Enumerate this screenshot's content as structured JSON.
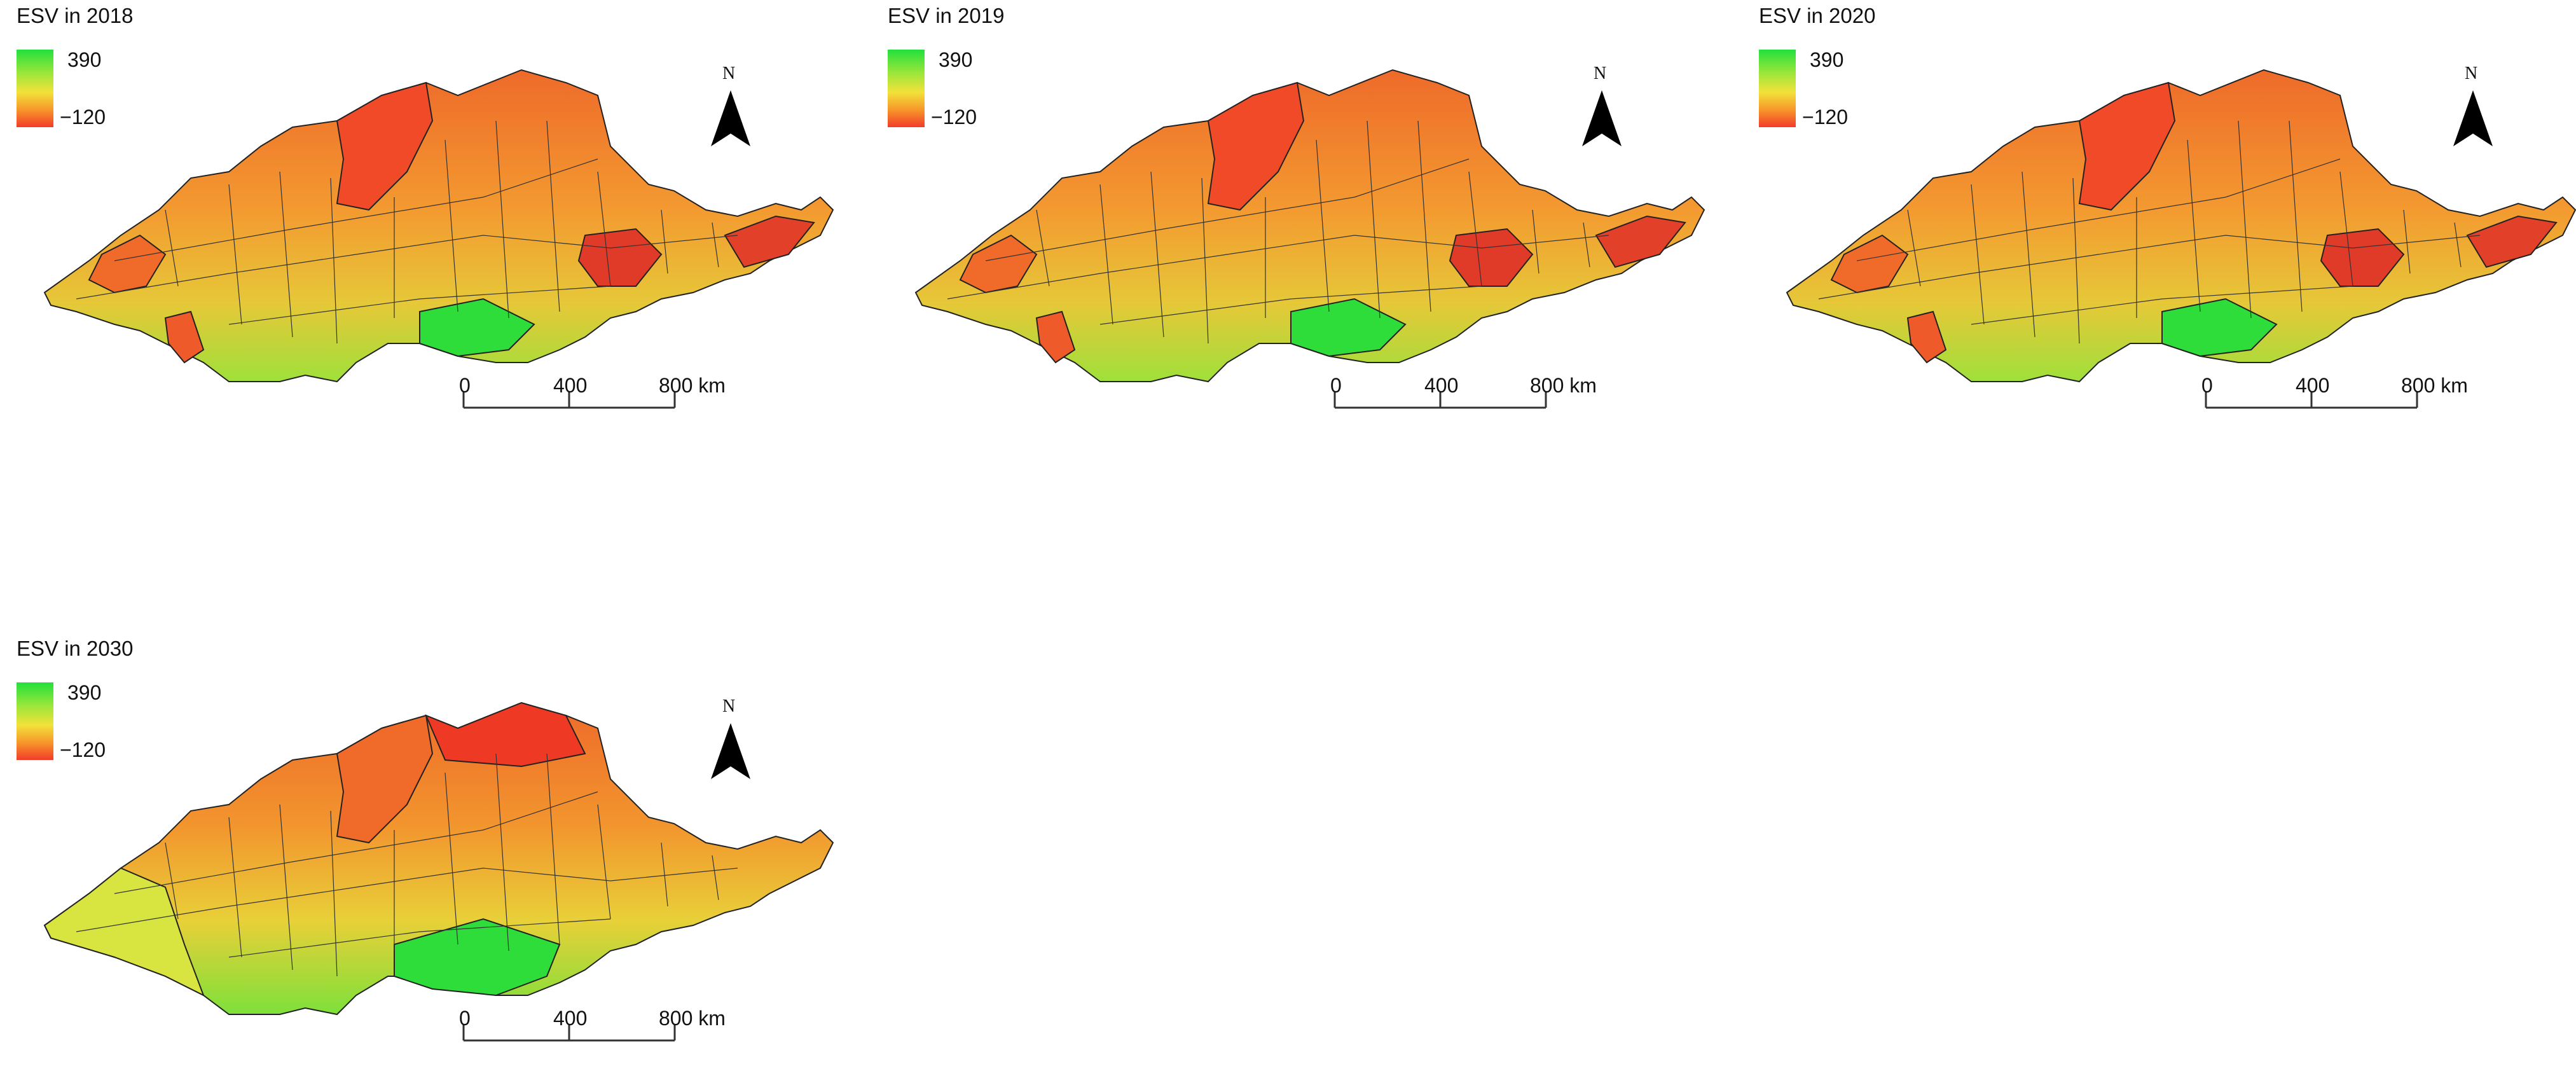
{
  "figure": {
    "panels": [
      {
        "title": "ESV in 2018",
        "year": 2018
      },
      {
        "title": "ESV in 2019",
        "year": 2019
      },
      {
        "title": "ESV in 2020",
        "year": 2020
      },
      {
        "title": "ESV in 2030",
        "year": 2030
      }
    ],
    "legend": {
      "max_label": "390",
      "min_label": "−120",
      "max_value": 390,
      "min_value": -120,
      "colors": {
        "high": "#22e03c",
        "mid": "#f2e23a",
        "low": "#f23b2a"
      }
    },
    "north_label": "N",
    "scale_labels": [
      "0",
      "400",
      "800 km"
    ]
  }
}
